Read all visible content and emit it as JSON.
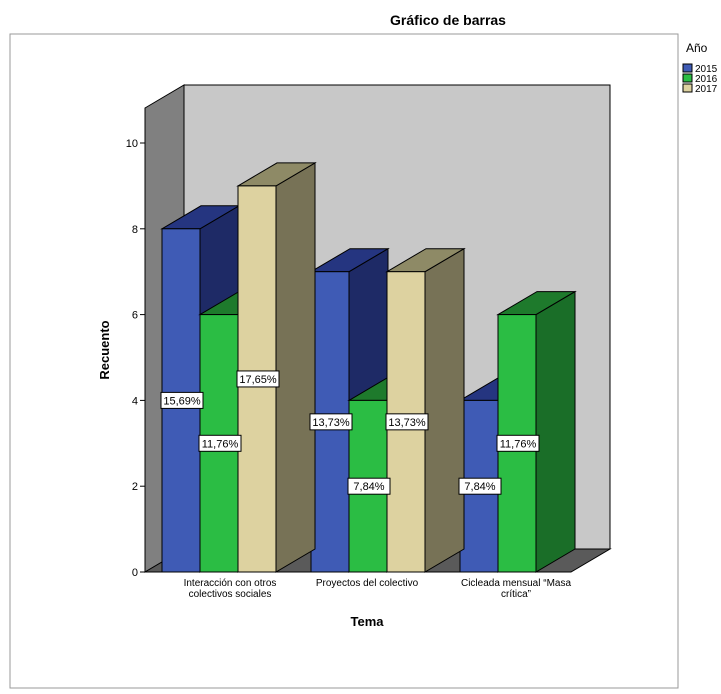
{
  "chart_data": {
    "type": "bar",
    "title": "Gráfico de barras",
    "xlabel": "Tema",
    "ylabel": "Recuento",
    "categories": [
      [
        "Interacción con otros",
        "colectivos sociales"
      ],
      [
        "Proyectos del colectivo"
      ],
      [
        "Cicleada mensual “Masa",
        "crítica”"
      ]
    ],
    "legend_title": "Año",
    "legend_position": "top-right",
    "series": [
      {
        "name": "2015",
        "values": [
          8,
          7,
          4
        ],
        "labels": [
          "15,69%",
          "13,73%",
          "7,84%"
        ]
      },
      {
        "name": "2016",
        "values": [
          6,
          4,
          6
        ],
        "labels": [
          "11,76%",
          "7,84%",
          "11,76%"
        ]
      },
      {
        "name": "2017",
        "values": [
          9,
          7,
          0
        ],
        "labels": [
          "17,65%",
          "13,73%",
          ""
        ]
      }
    ],
    "ylim": [
      0,
      10
    ],
    "yticks": [
      "0",
      "2",
      "4",
      "6",
      "8",
      "10"
    ],
    "grid": false,
    "colors": {
      "series_front": [
        "#3f5bb5",
        "#2bbd44",
        "#ddd2a0"
      ],
      "series_top": [
        "#253580",
        "#1e7a2c",
        "#8e8a66"
      ],
      "series_side": [
        "#1e2a66",
        "#1a6e28",
        "#777256"
      ],
      "back_wall": "#c8c8c8",
      "side_wall": "#808080",
      "floor": "#5a5a5a"
    }
  }
}
